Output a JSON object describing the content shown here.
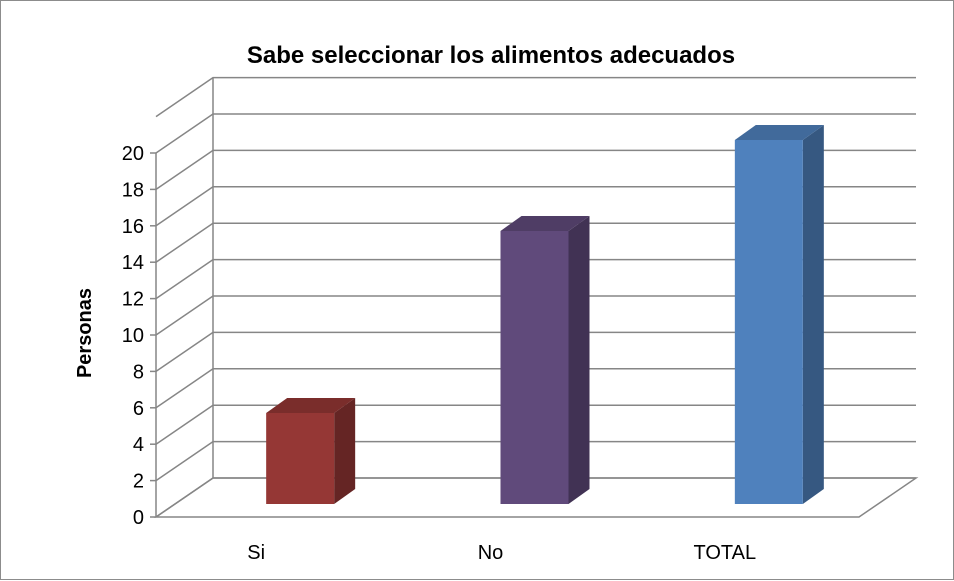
{
  "chart_data": {
    "type": "bar",
    "title": "Sabe seleccionar los alimentos adecuados",
    "xlabel": "",
    "ylabel": "Personas",
    "categories": [
      "Si",
      "No",
      "TOTAL"
    ],
    "values": [
      5,
      15,
      20
    ],
    "y_ticks": [
      "0",
      "2",
      "4",
      "6",
      "8",
      "10",
      "12",
      "14",
      "16",
      "18",
      "20"
    ],
    "ylim": [
      0,
      22
    ],
    "grid": true,
    "legend": "none",
    "colors": [
      "#953735",
      "#604a7b",
      "#4f81bd"
    ]
  }
}
